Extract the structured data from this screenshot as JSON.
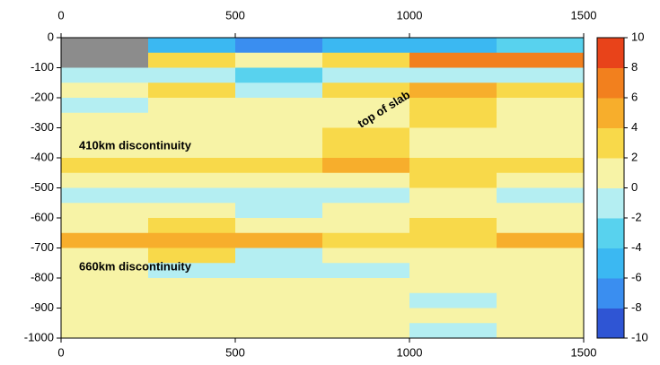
{
  "chart_data": {
    "type": "heatmap",
    "xlim": [
      0,
      1500
    ],
    "xticks": [
      0,
      500,
      1000,
      1500
    ],
    "ylim": [
      -1000,
      0
    ],
    "yticks": [
      0,
      -100,
      -200,
      -300,
      -400,
      -500,
      -600,
      -700,
      -800,
      -900,
      -1000
    ],
    "x_edges": [
      0,
      250,
      500,
      750,
      1000,
      1250,
      1500
    ],
    "y_edges": [
      0,
      -50,
      -100,
      -150,
      -200,
      -250,
      -300,
      -350,
      -400,
      -450,
      -500,
      -550,
      -600,
      -650,
      -700,
      -750,
      -800,
      -850,
      -900,
      -950,
      -1000
    ],
    "values": [
      [
        null,
        -6,
        -7,
        -6,
        -5,
        -4
      ],
      [
        null,
        2,
        1,
        3,
        6,
        7
      ],
      [
        -2,
        -2,
        -3,
        -2,
        -1,
        -2
      ],
      [
        1,
        2,
        -1,
        3,
        4,
        2
      ],
      [
        -1,
        1,
        0,
        1,
        2,
        1
      ],
      [
        1,
        0,
        1,
        1,
        2,
        1
      ],
      [
        0,
        1,
        0,
        3,
        1,
        0
      ],
      [
        1,
        0,
        1,
        2,
        0,
        1
      ],
      [
        3,
        3,
        2,
        4,
        3,
        3
      ],
      [
        0,
        1,
        0,
        0,
        2,
        1
      ],
      [
        -1,
        -1,
        -2,
        -1,
        0,
        -1
      ],
      [
        0,
        1,
        -1,
        0,
        1,
        0
      ],
      [
        1,
        2,
        1,
        1,
        2,
        1
      ],
      [
        4,
        5,
        4,
        3,
        2,
        5
      ],
      [
        1,
        2,
        -1,
        0,
        1,
        0
      ],
      [
        0,
        -1,
        -2,
        -1,
        0,
        0
      ],
      [
        1,
        0,
        1,
        0,
        1,
        1
      ],
      [
        0,
        1,
        1,
        0,
        -1,
        1
      ],
      [
        1,
        1,
        0,
        1,
        0,
        1
      ],
      [
        1,
        0,
        1,
        0,
        -1,
        0
      ]
    ],
    "missing_color": "#8c8c8c",
    "clim": [
      -10,
      10
    ],
    "colorbar_ticks": [
      10,
      8,
      6,
      4,
      2,
      0,
      -2,
      -4,
      -6,
      -8,
      -10
    ],
    "colorscale": [
      "#2f55d4",
      "#3a8ef0",
      "#3bb8f2",
      "#58d2ee",
      "#b4eef2",
      "#f7f3a6",
      "#f8d94a",
      "#f7ae2c",
      "#f2801e",
      "#e8431a"
    ],
    "annotations": [
      "410km discontinuity",
      "660km discontinuity",
      "top of slab"
    ]
  }
}
